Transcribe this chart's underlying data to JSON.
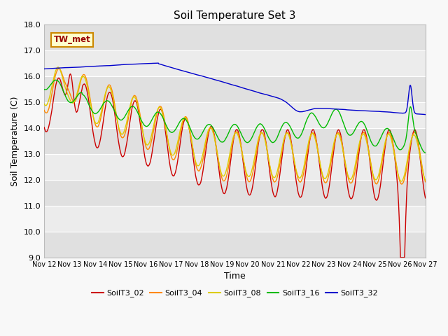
{
  "title": "Soil Temperature Set 3",
  "xlabel": "Time",
  "ylabel": "Soil Temperature (C)",
  "ylim": [
    9.0,
    18.0
  ],
  "yticks": [
    9.0,
    10.0,
    11.0,
    12.0,
    13.0,
    14.0,
    15.0,
    16.0,
    17.0,
    18.0
  ],
  "xtick_labels": [
    "Nov 12",
    "Nov 13",
    "Nov 14",
    "Nov 15",
    "Nov 16",
    "Nov 17",
    "Nov 18",
    "Nov 19",
    "Nov 20",
    "Nov 21",
    "Nov 22",
    "Nov 23",
    "Nov 24",
    "Nov 25",
    "Nov 26",
    "Nov 27"
  ],
  "num_days": 15,
  "label_box": "TW_met",
  "series": {
    "SoilT3_02": {
      "color": "#cc0000",
      "lw": 1.0
    },
    "SoilT3_04": {
      "color": "#ff8800",
      "lw": 1.0
    },
    "SoilT3_08": {
      "color": "#ddcc00",
      "lw": 1.0
    },
    "SoilT3_16": {
      "color": "#00bb00",
      "lw": 1.0
    },
    "SoilT3_32": {
      "color": "#0000cc",
      "lw": 1.0
    }
  },
  "legend_order": [
    "SoilT3_02",
    "SoilT3_04",
    "SoilT3_08",
    "SoilT3_16",
    "SoilT3_32"
  ]
}
